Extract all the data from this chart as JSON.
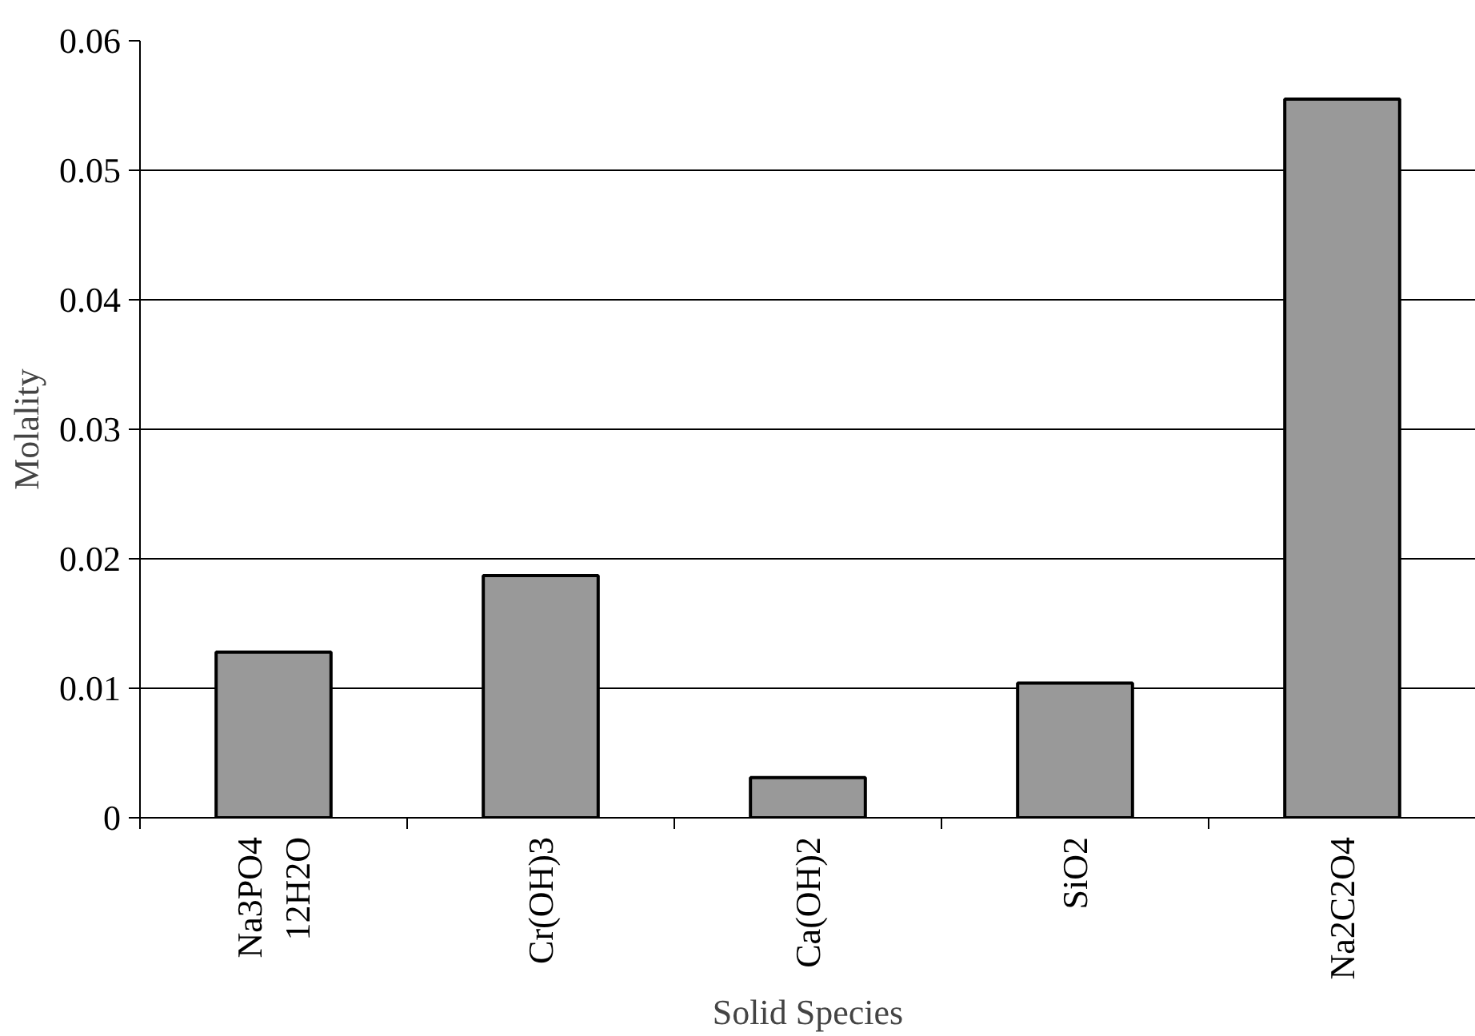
{
  "chart_data": {
    "type": "bar",
    "xlabel": "Solid Species",
    "ylabel": "Molality",
    "categories": [
      "Na3PO4\n12H2O",
      "Cr(OH)3",
      "Ca(OH)2",
      "SiO2",
      "Na2C2O4"
    ],
    "values": [
      0.0128,
      0.0187,
      0.0031,
      0.0104,
      0.0555
    ],
    "color": "#999999",
    "ylim": [
      0,
      0.06
    ],
    "yticks": [
      0,
      0.01,
      0.02,
      0.03,
      0.04,
      0.05,
      0.06
    ],
    "grid": "y"
  }
}
